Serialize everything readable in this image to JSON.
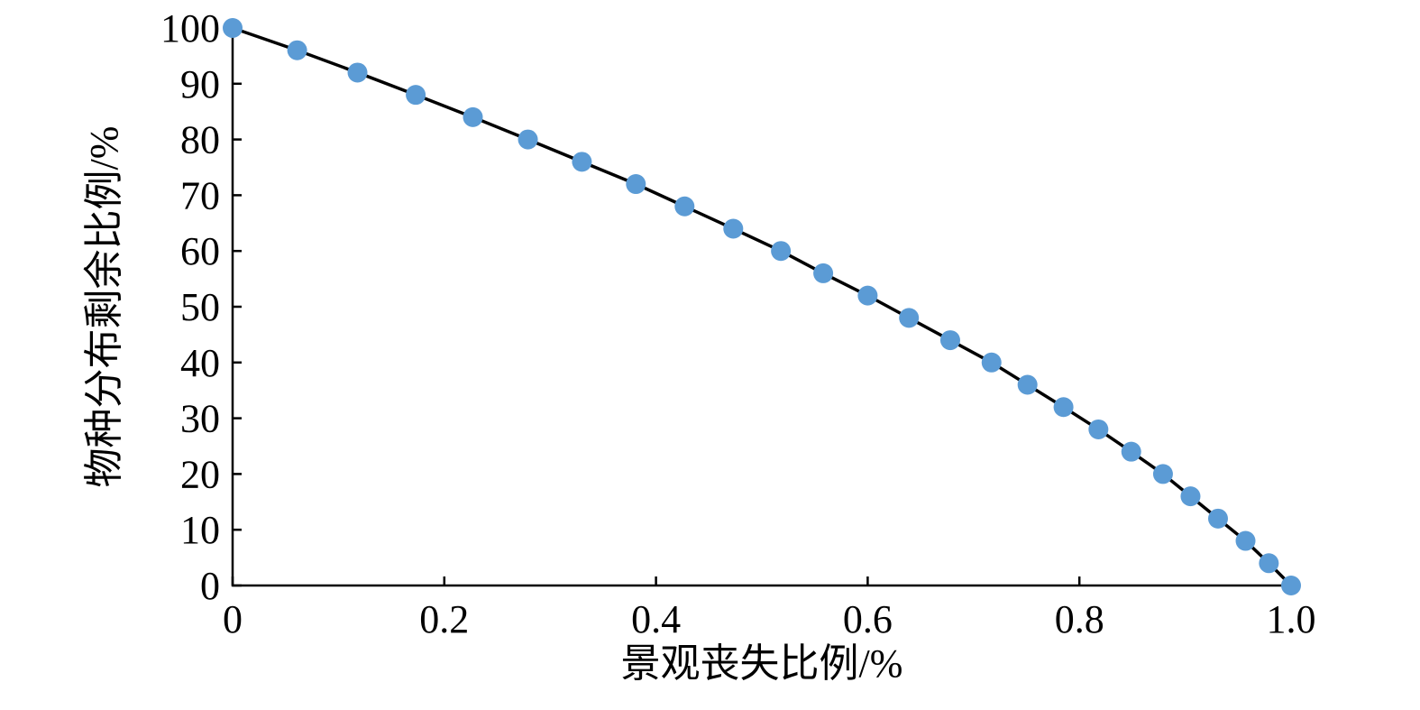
{
  "chart_data": {
    "type": "line",
    "x_label": "景观丧失比例/%",
    "y_label": "物种分布剩余比例/%",
    "series": [
      {
        "color": "#5b9bd5",
        "line_color": "#000000",
        "x": [
          0,
          0.061,
          0.118,
          0.173,
          0.227,
          0.279,
          0.33,
          0.381,
          0.427,
          0.473,
          0.518,
          0.558,
          0.6,
          0.639,
          0.678,
          0.717,
          0.751,
          0.785,
          0.818,
          0.849,
          0.879,
          0.905,
          0.931,
          0.957,
          0.979,
          1
        ],
        "values": [
          100,
          96,
          92,
          88,
          84,
          80,
          76,
          72,
          68,
          64,
          60,
          56,
          52,
          48,
          44,
          40,
          36,
          32,
          28,
          24,
          20,
          16,
          12,
          8,
          4,
          0
        ]
      }
    ],
    "xlim": [
      0,
      1
    ],
    "xticks": [
      0,
      0.2,
      0.4,
      0.6,
      0.8,
      {
        "value": 1,
        "label": "1.0"
      }
    ],
    "ylim": [
      0,
      100
    ],
    "yticks": [
      0,
      10,
      20,
      30,
      40,
      50,
      60,
      70,
      80,
      90,
      100
    ]
  }
}
